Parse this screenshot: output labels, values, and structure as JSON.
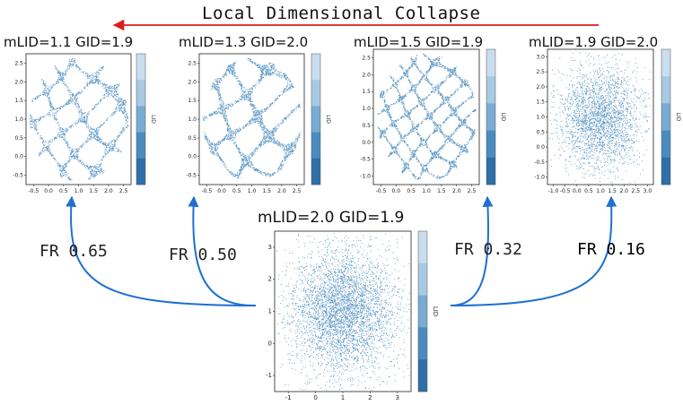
{
  "banner": {
    "text": "Local Dimensional Collapse",
    "arrow_color": "#dd1c1c"
  },
  "curve_color": "#1f6fd1",
  "point_color": "#3c82b8",
  "colorbar_colors": [
    "#c9ddee",
    "#a8c9e2",
    "#79acd2",
    "#4a8cbf",
    "#2e6fa8"
  ],
  "colorbar_label": "LID",
  "panels": [
    {
      "title": "mLID=1.1 GID=1.9",
      "style": "stripes",
      "freq": 3.1,
      "density": 2300,
      "xticks": [
        "-0.5",
        "0.0",
        "0.5",
        "1.0",
        "1.5",
        "2.0",
        "2.5"
      ],
      "yticks": [
        "2.5",
        "2.0",
        "1.5",
        "1.0",
        "0.5",
        "0.0",
        "-0.5"
      ]
    },
    {
      "title": "mLID=1.3 GID=2.0",
      "style": "stripes",
      "freq": 2.6,
      "density": 2600,
      "xticks": [
        "-0.5",
        "0.0",
        "0.5",
        "1.0",
        "1.5",
        "2.0",
        "2.5"
      ],
      "yticks": [
        "2.5",
        "2.0",
        "1.5",
        "1.0",
        "0.5",
        "0.0",
        "-0.5"
      ]
    },
    {
      "title": "mLID=1.5 GID=1.9",
      "style": "stripes",
      "freq": 4.4,
      "density": 3200,
      "xticks": [
        "-0.5",
        "0.0",
        "0.5",
        "1.0",
        "1.5",
        "2.0",
        "2.5"
      ],
      "yticks": [
        "2.5",
        "2.0",
        "1.5",
        "1.0",
        "0.5",
        "0.0",
        "-0.5",
        "-1.0"
      ]
    },
    {
      "title": "mLID=1.9 GID=2.0",
      "style": "cloud",
      "freq": 0,
      "density": 2600,
      "xticks": [
        "-1.0",
        "-0.5",
        "0.0",
        "0.5",
        "1.0",
        "1.5",
        "2.0",
        "2.5",
        "3.0"
      ],
      "yticks": [
        "3.0",
        "2.5",
        "2.0",
        "1.5",
        "1.0",
        "0.5",
        "0.0",
        "-0.5",
        "-1.0"
      ]
    }
  ],
  "center_panel": {
    "title": "mLID=2.0 GID=1.9",
    "style": "cloud",
    "density": 4200,
    "xticks": [
      "-1",
      "0",
      "1",
      "2",
      "3"
    ],
    "yticks": [
      "3",
      "2",
      "1",
      "0",
      "-1"
    ]
  },
  "fr_labels": [
    "FR 0.65",
    "FR 0.50",
    "FR 0.32",
    "FR 0.16"
  ]
}
